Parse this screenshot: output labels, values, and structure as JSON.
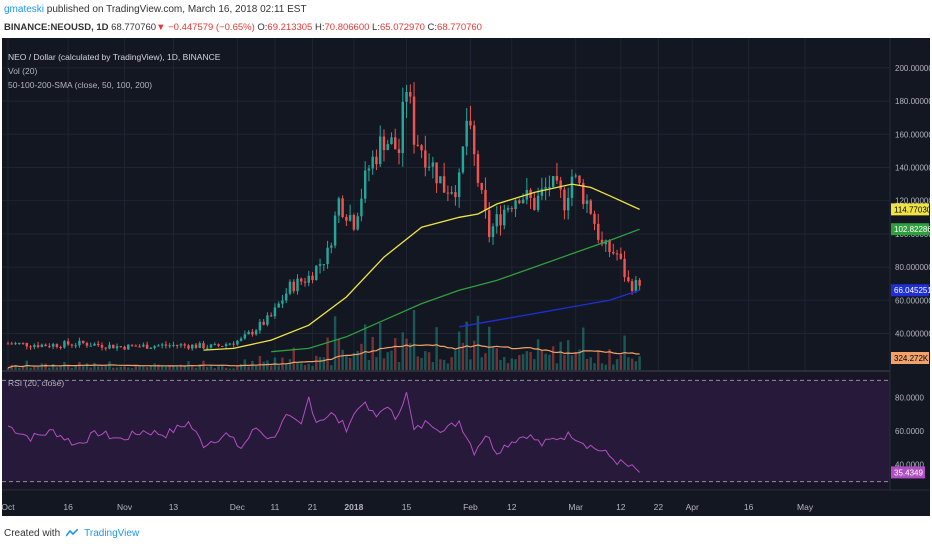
{
  "header": {
    "user": "gmateski",
    "published": "published on TradingView.com, March 16, 2018 02:11 EST",
    "symbol": "BINANCE:NEOUSD, 1D",
    "last": "68.770760",
    "change": "−0.447579 (−0.65%)",
    "o_label": "O:",
    "o": "69.213305",
    "h_label": "H:",
    "h": "70.806600",
    "l_label": "L:",
    "l": "65.072970",
    "c_label": "C:",
    "c": "68.770760"
  },
  "legend": {
    "title": "NEO / Dollar (calculated by TradingView), 1D, BINANCE",
    "vol": "Vol (20)",
    "sma": "50-100-200-SMA (close, 50, 100, 200)",
    "rsi": "RSI (20, close)"
  },
  "footer": {
    "created": "Created with",
    "brand": "TradingView"
  },
  "colors": {
    "bg": "#131722",
    "grid": "#1f2433",
    "up": "#26a69a",
    "down": "#ef5350",
    "sma50": "#f0e442",
    "sma100": "#2e9e3e",
    "sma200": "#1f2fd8",
    "vol_ma": "#f0a26a",
    "rsi_line": "#b04fc2",
    "rsi_fill": "#2a1a3e",
    "axis_text": "#b2b5be"
  },
  "chart_data": {
    "type": "candlestick",
    "price_axis": {
      "ylim": [
        18,
        218
      ],
      "ticks": [
        "200.000000",
        "180.000000",
        "160.000000",
        "140.000000",
        "120.000000",
        "100.000000",
        "80.000000",
        "60.000000",
        "40.000000"
      ],
      "tick_values": [
        200,
        180,
        160,
        140,
        120,
        100,
        80,
        60,
        40
      ]
    },
    "price_badges": [
      {
        "label": "114.770307",
        "value": 114.77,
        "color": "#f0e442",
        "text_color": "#000000"
      },
      {
        "label": "102.822861",
        "value": 102.82,
        "color": "#2e9e3e",
        "text_color": "#ffffff"
      },
      {
        "label": "66.045251",
        "value": 66.05,
        "color": "#1f2fd8",
        "text_color": "#ffffff"
      }
    ],
    "volume_badge": {
      "label": "324.272K",
      "color": "#f0a26a",
      "text_color": "#000000"
    },
    "x_axis": {
      "labels": [
        "Oct",
        "16",
        "Nov",
        "13",
        "Dec",
        "11",
        "21",
        "2018",
        "15",
        "Feb",
        "12",
        "Mar",
        "12",
        "22",
        "Apr",
        "16",
        "May"
      ],
      "label_days": [
        0,
        16,
        31,
        44,
        61,
        71,
        81,
        92,
        106,
        123,
        134,
        151,
        163,
        173,
        182,
        197,
        212
      ],
      "day_range": [
        0,
        233
      ],
      "data_days": 168
    },
    "candles": {
      "anchors_day": [
        0,
        10,
        20,
        30,
        45,
        55,
        62,
        70,
        75,
        80,
        85,
        88,
        92,
        96,
        100,
        104,
        106,
        108,
        112,
        116,
        120,
        122,
        124,
        126,
        128,
        132,
        136,
        140,
        144,
        148,
        150,
        152,
        155,
        158,
        162,
        165,
        168
      ],
      "anchors_close": [
        34,
        33,
        34,
        32,
        33,
        32,
        36,
        50,
        68,
        74,
        88,
        120,
        108,
        140,
        158,
        150,
        190,
        160,
        145,
        128,
        130,
        168,
        145,
        120,
        100,
        115,
        125,
        118,
        130,
        120,
        135,
        128,
        115,
        92,
        88,
        70,
        68.77
      ]
    },
    "sma50": {
      "days": [
        52,
        60,
        70,
        80,
        90,
        100,
        110,
        120,
        125,
        130,
        140,
        150,
        155,
        160,
        168
      ],
      "values": [
        30,
        31,
        36,
        45,
        62,
        86,
        104,
        110,
        112,
        118,
        125,
        130,
        128,
        123,
        114.77
      ]
    },
    "sma100": {
      "days": [
        70,
        80,
        90,
        100,
        110,
        120,
        130,
        140,
        150,
        160,
        168
      ],
      "values": [
        29,
        31,
        38,
        48,
        58,
        66,
        72,
        80,
        88,
        96,
        102.82
      ]
    },
    "sma200": {
      "days": [
        120,
        130,
        140,
        150,
        160,
        168
      ],
      "values": [
        44,
        48,
        52,
        56,
        60,
        66.05
      ]
    },
    "rsi": {
      "ylim": [
        25,
        95
      ],
      "ticks": [
        "80.0000",
        "60.0000",
        "40.0000"
      ],
      "tick_values": [
        80,
        60,
        40
      ],
      "band": [
        30,
        90
      ],
      "last_badge": "35.4349",
      "last": 35.43,
      "anchors_day": [
        0,
        6,
        12,
        18,
        24,
        30,
        36,
        42,
        48,
        52,
        58,
        62,
        66,
        70,
        74,
        78,
        80,
        82,
        86,
        90,
        94,
        98,
        100,
        103,
        106,
        108,
        112,
        116,
        120,
        124,
        127,
        130,
        134,
        138,
        142,
        146,
        150,
        154,
        158,
        162,
        166,
        168
      ],
      "anchors_value": [
        63,
        56,
        60,
        52,
        59,
        55,
        60,
        58,
        65,
        52,
        58,
        50,
        62,
        55,
        68,
        63,
        80,
        66,
        70,
        62,
        77,
        68,
        75,
        68,
        82,
        60,
        66,
        60,
        66,
        48,
        58,
        48,
        54,
        58,
        52,
        56,
        58,
        52,
        48,
        42,
        38,
        35.43
      ]
    }
  }
}
